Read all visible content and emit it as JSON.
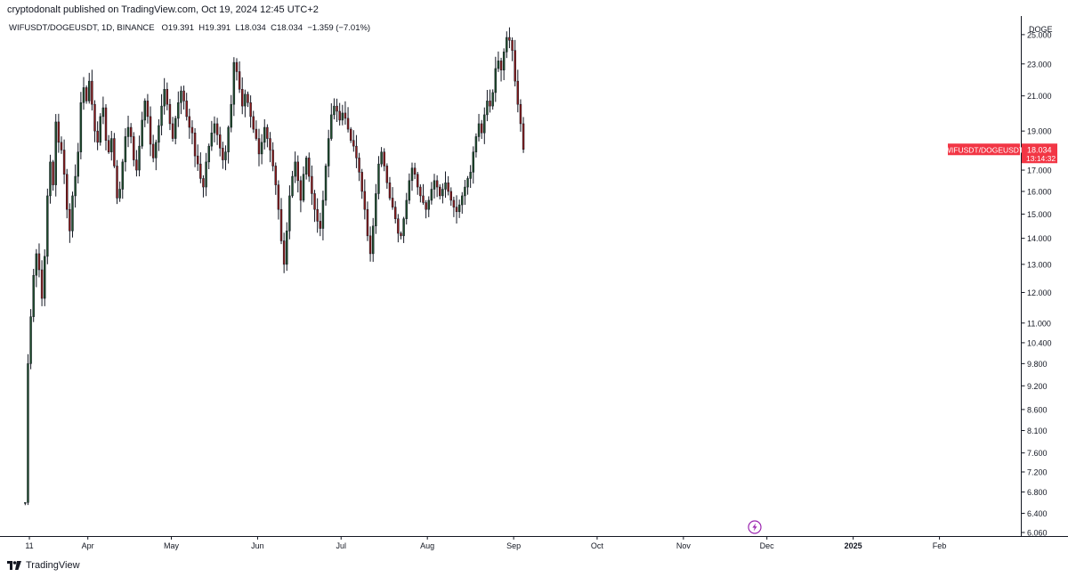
{
  "header": {
    "publisher_line": "cryptodonalt published on TradingView.com, Oct 19, 2024 12:45 UTC+2",
    "legend": {
      "symbol": "WIFUSDT/DOGEUSDT, 1D, BINANCE",
      "open": "O19.391",
      "high": "H19.391",
      "low": "L18.034",
      "close": "C18.034",
      "change": "−1.359 (−7.01%)"
    }
  },
  "footer": {
    "brand": "TradingView"
  },
  "colors": {
    "up": "#1e4d2b",
    "down": "#8b1a1a",
    "wick": "#131722",
    "price_tag": "#f23645",
    "axis_line": "#131722",
    "lightning": "#9c27b0"
  },
  "chart_data": {
    "type": "candlestick",
    "symbol": "WIFUSDT/DOGEUSDT",
    "interval": "1D",
    "exchange": "BINANCE",
    "y_axis": {
      "title": "DOGE",
      "scale": "log",
      "position": "right",
      "range": [
        6.06,
        25.7
      ],
      "ticks": [
        "25.000",
        "23.000",
        "21.000",
        "19.000",
        "17.000",
        "16.000",
        "15.000",
        "14.000",
        "13.000",
        "12.000",
        "11.000",
        "10.400",
        "9.800",
        "9.200",
        "8.600",
        "8.100",
        "7.600",
        "7.200",
        "6.800",
        "6.400",
        "6.060"
      ]
    },
    "x_axis": {
      "start": "2024-03-03",
      "end": "2025-02-28",
      "tick_labels": [
        {
          "date": "2024-03-11",
          "label": "11"
        },
        {
          "date": "2024-04-01",
          "label": "Apr"
        },
        {
          "date": "2024-05-01",
          "label": "May"
        },
        {
          "date": "2024-06-01",
          "label": "Jun"
        },
        {
          "date": "2024-07-01",
          "label": "Jul"
        },
        {
          "date": "2024-08-01",
          "label": "Aug"
        },
        {
          "date": "2024-09-01",
          "label": "Sep"
        },
        {
          "date": "2024-10-01",
          "label": "Oct"
        },
        {
          "date": "2024-11-01",
          "label": "Nov"
        },
        {
          "date": "2024-12-01",
          "label": "Dec"
        },
        {
          "date": "2025-01-01",
          "label": "2025"
        },
        {
          "date": "2025-02-01",
          "label": "Feb"
        }
      ]
    },
    "last_price": {
      "label": "WIFUSDT/DOGEUSDT",
      "value": "18.034",
      "countdown": "13:14:32"
    },
    "grid": false,
    "legend": "top-left",
    "first_date": "2024-03-09",
    "closes": [
      6.6,
      9.8,
      11.2,
      12.6,
      13.4,
      12.8,
      11.8,
      13.3,
      15.8,
      17.4,
      16.3,
      19.5,
      18.4,
      18.0,
      16.8,
      15.2,
      14.3,
      15.8,
      16.7,
      17.9,
      20.6,
      21.5,
      20.7,
      21.9,
      20.5,
      19.0,
      18.4,
      19.8,
      20.3,
      18.5,
      17.9,
      18.6,
      17.2,
      15.7,
      16.1,
      17.4,
      18.7,
      19.2,
      18.7,
      17.5,
      17.0,
      18.2,
      19.6,
      20.7,
      19.8,
      18.3,
      17.6,
      18.4,
      19.3,
      20.4,
      21.4,
      20.5,
      19.4,
      18.6,
      19.7,
      20.6,
      21.3,
      20.7,
      19.8,
      19.2,
      18.9,
      17.7,
      17.3,
      16.6,
      16.2,
      17.4,
      18.2,
      18.9,
      19.4,
      18.8,
      18.1,
      17.5,
      17.9,
      19.2,
      20.5,
      23.1,
      22.5,
      21.4,
      20.4,
      21.1,
      20.6,
      19.8,
      19.1,
      18.6,
      17.8,
      18.4,
      19.2,
      18.6,
      18.0,
      17.2,
      16.3,
      15.2,
      13.9,
      13.0,
      14.3,
      15.8,
      16.7,
      17.4,
      16.5,
      15.6,
      16.8,
      17.6,
      16.7,
      15.9,
      15.2,
      14.7,
      14.4,
      15.6,
      17.2,
      18.6,
      19.9,
      20.4,
      20.1,
      19.6,
      20.0,
      19.7,
      19.1,
      18.5,
      18.2,
      17.6,
      16.9,
      16.0,
      15.2,
      14.1,
      13.4,
      14.5,
      15.9,
      17.3,
      17.9,
      17.2,
      16.4,
      15.7,
      15.3,
      14.8,
      14.2,
      14.1,
      14.8,
      15.6,
      16.5,
      17.1,
      16.8,
      16.2,
      15.8,
      15.5,
      15.2,
      15.6,
      16.1,
      16.5,
      16.2,
      15.8,
      16.1,
      16.4,
      16.0,
      15.6,
      15.3,
      15.1,
      15.4,
      15.8,
      16.2,
      16.6,
      16.9,
      17.9,
      18.7,
      19.4,
      18.9,
      19.9,
      20.7,
      20.4,
      21.2,
      22.7,
      23.2,
      22.6,
      23.8,
      24.8,
      24.6,
      23.9,
      21.9,
      20.5,
      19.4,
      18.034
    ]
  }
}
